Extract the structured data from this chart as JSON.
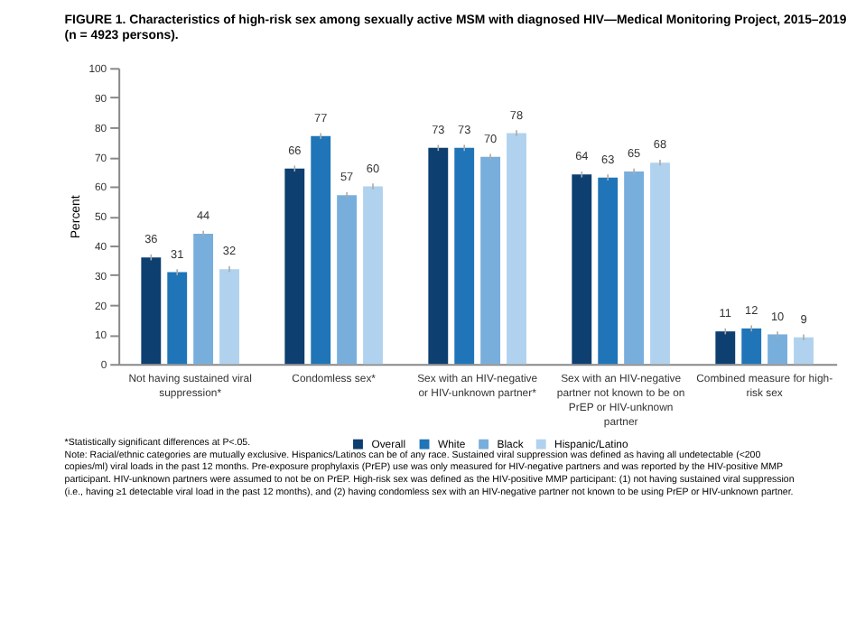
{
  "chart_data": {
    "type": "bar",
    "title": "FIGURE 1. Characteristics of high-risk sex among sexually active MSM with diagnosed HIV—Medical Monitoring Project, 2015–2019 (n = 4923 persons).",
    "ylabel": "Percent",
    "categories": [
      "Not having sustained viral suppression*",
      "Condomless sex*",
      "Sex with an HIV-negative or HIV-unknown partner*",
      "Sex with an HIV-negative partner not known to be on PrEP or HIV-unknown partner",
      "Combined measure for high-risk sex"
    ],
    "series": [
      {
        "name": "Overall",
        "color": "#0d3f70",
        "values": [
          36,
          66,
          73,
          64,
          11
        ],
        "errors": [
          1,
          1,
          1,
          1,
          1
        ]
      },
      {
        "name": "White",
        "color": "#1f75b8",
        "values": [
          31,
          77,
          73,
          63,
          12
        ],
        "errors": [
          1,
          1,
          1,
          1,
          1
        ]
      },
      {
        "name": "Black",
        "color": "#78aedc",
        "values": [
          44,
          57,
          70,
          65,
          10
        ],
        "errors": [
          1,
          1,
          1,
          1,
          1
        ]
      },
      {
        "name": "Hispanic/Latino",
        "color": "#b0d2ee",
        "values": [
          32,
          60,
          78,
          68,
          9
        ],
        "errors": [
          1,
          1,
          1,
          1,
          1
        ]
      }
    ],
    "ylim": [
      0,
      100
    ],
    "yticks": [
      0,
      10,
      20,
      30,
      40,
      50,
      60,
      70,
      80,
      90,
      100
    ],
    "data_labels": true,
    "grid": false,
    "legend": "bottom",
    "annotations": [
      "*Statistically significant differences at P<.05.",
      "Note: Racial/ethnic categories are mutually exclusive. Hispanics/Latinos can be of any race. Sustained viral suppression was defined as having all undetectable (<200 copies/ml) viral loads in the past 12 months. Pre-exposure prophylaxis (PrEP) use was only measured for HIV-negative partners and was reported by the HIV-positive MMP participant. HIV-unknown partners were assumed to not be on PrEP. High-risk sex was defined as the HIV-positive MMP participant: (1) not having sustained viral suppression (i.e., having ≥1 detectable viral load in the past 12 months), and (2) having condomless sex with an HIV-negative partner not known to be using PrEP or HIV-unknown partner."
    ]
  }
}
